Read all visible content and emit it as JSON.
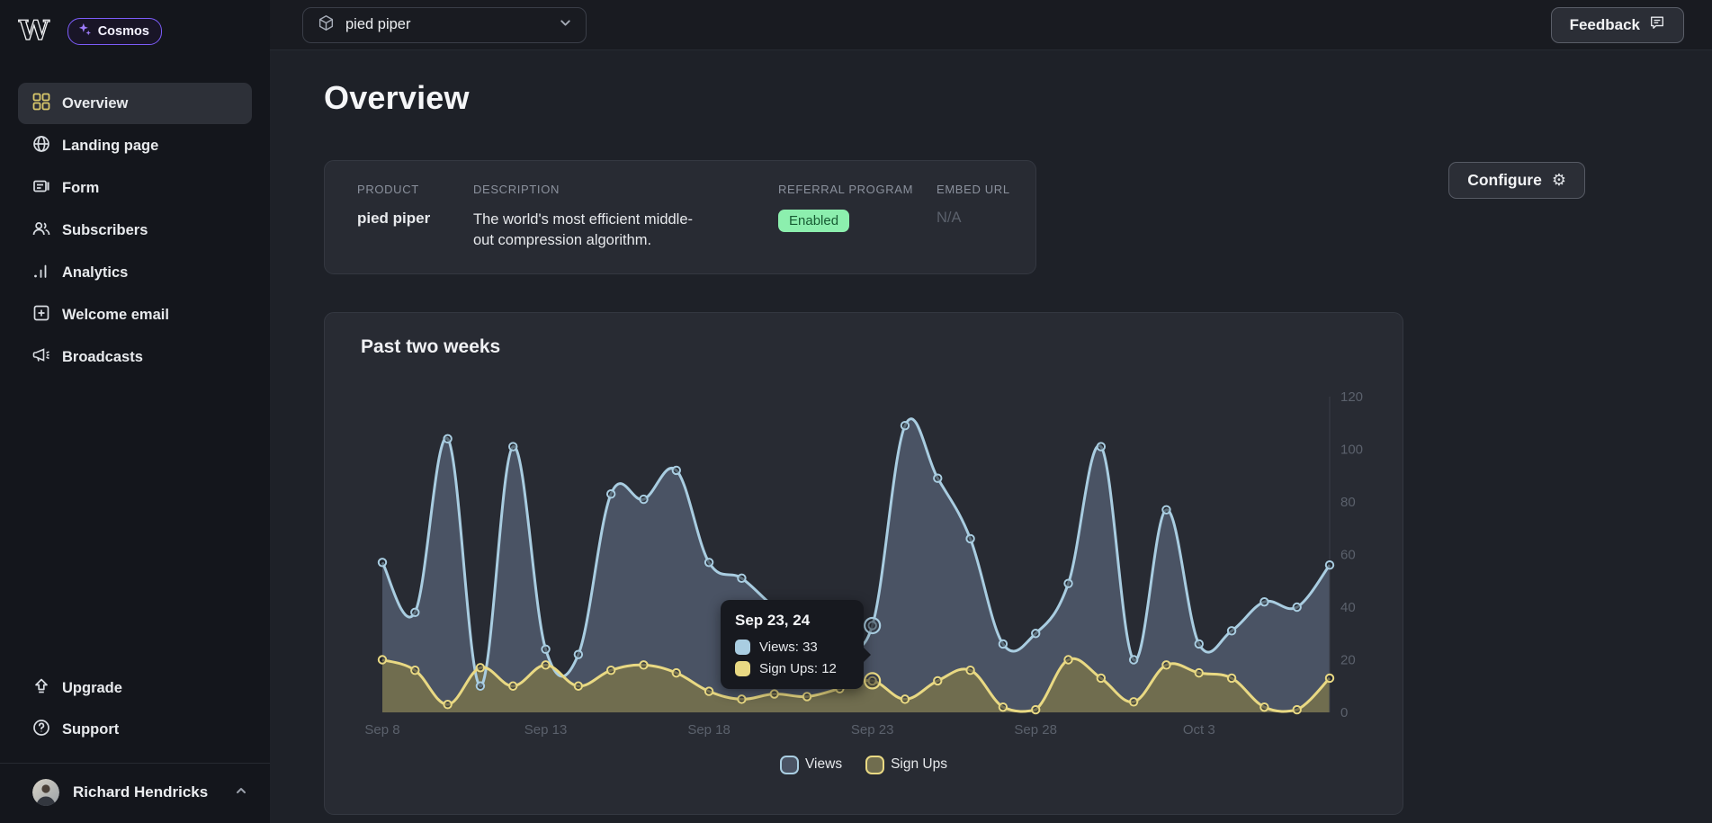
{
  "brand": {
    "logo": "W",
    "badge": "Cosmos"
  },
  "sidebar": {
    "items": [
      {
        "label": "Overview",
        "active": true
      },
      {
        "label": "Landing page",
        "active": false
      },
      {
        "label": "Form",
        "active": false
      },
      {
        "label": "Subscribers",
        "active": false
      },
      {
        "label": "Analytics",
        "active": false
      },
      {
        "label": "Welcome email",
        "active": false
      },
      {
        "label": "Broadcasts",
        "active": false
      }
    ],
    "footer_items": [
      {
        "label": "Upgrade"
      },
      {
        "label": "Support"
      }
    ],
    "user": {
      "name": "Richard Hendricks"
    }
  },
  "topbar": {
    "product_selector": "pied piper",
    "feedback_label": "Feedback"
  },
  "page": {
    "title": "Overview"
  },
  "product_card": {
    "product_label": "PRODUCT",
    "product_value": "pied piper",
    "description_label": "DESCRIPTION",
    "description_value": "The world's most efficient middle-out compression algorithm.",
    "referral_label": "REFERRAL PROGRAM",
    "referral_value": "Enabled",
    "embed_label": "EMBED URL",
    "embed_value": "N/A"
  },
  "configure_label": "Configure",
  "chart_card": {
    "title": "Past two weeks"
  },
  "chart_data": {
    "type": "line",
    "title": "Past two weeks",
    "x": [
      "Sep 8",
      "Sep 9",
      "Sep 10",
      "Sep 11",
      "Sep 12",
      "Sep 13",
      "Sep 14",
      "Sep 15",
      "Sep 16",
      "Sep 17",
      "Sep 18",
      "Sep 19",
      "Sep 20",
      "Sep 21",
      "Sep 22",
      "Sep 23",
      "Sep 24",
      "Sep 25",
      "Sep 26",
      "Sep 27",
      "Sep 28",
      "Sep 29",
      "Sep 30",
      "Oct 1",
      "Oct 2",
      "Oct 3",
      "Oct 4",
      "Oct 5",
      "Oct 6",
      "Oct 7"
    ],
    "series": [
      {
        "name": "Views",
        "color": "#a9cde1",
        "fill": "#4a5364",
        "values": [
          57,
          38,
          104,
          10,
          101,
          24,
          22,
          83,
          81,
          92,
          57,
          51,
          40,
          32,
          28,
          33,
          109,
          89,
          66,
          26,
          30,
          49,
          101,
          20,
          77,
          26,
          31,
          42,
          40,
          56
        ]
      },
      {
        "name": "Sign Ups",
        "color": "#e9d983",
        "fill": "#706d4f",
        "values": [
          20,
          16,
          3,
          17,
          10,
          18,
          10,
          16,
          18,
          15,
          8,
          5,
          7,
          6,
          9,
          12,
          5,
          12,
          16,
          2,
          1,
          20,
          13,
          4,
          18,
          15,
          13,
          2,
          1,
          13
        ]
      }
    ],
    "ylim": [
      0,
      120
    ],
    "yticks": [
      0,
      20,
      40,
      60,
      80,
      100,
      120
    ],
    "xticks": [
      {
        "index": 0,
        "label": "Sep 8"
      },
      {
        "index": 5,
        "label": "Sep 13"
      },
      {
        "index": 10,
        "label": "Sep 18"
      },
      {
        "index": 15,
        "label": "Sep 23"
      },
      {
        "index": 20,
        "label": "Sep 28"
      },
      {
        "index": 25,
        "label": "Oct 3"
      }
    ],
    "legend_position": "bottom",
    "grid": false,
    "tooltip": {
      "index": 15,
      "title": "Sep 23, 24",
      "rows": [
        {
          "text": "Views: 33",
          "color": "#a9cde1"
        },
        {
          "text": "Sign Ups: 12",
          "color": "#e9d983"
        }
      ]
    },
    "tick_color": "#5b616c",
    "axis_line_color": "#3a3e47"
  }
}
